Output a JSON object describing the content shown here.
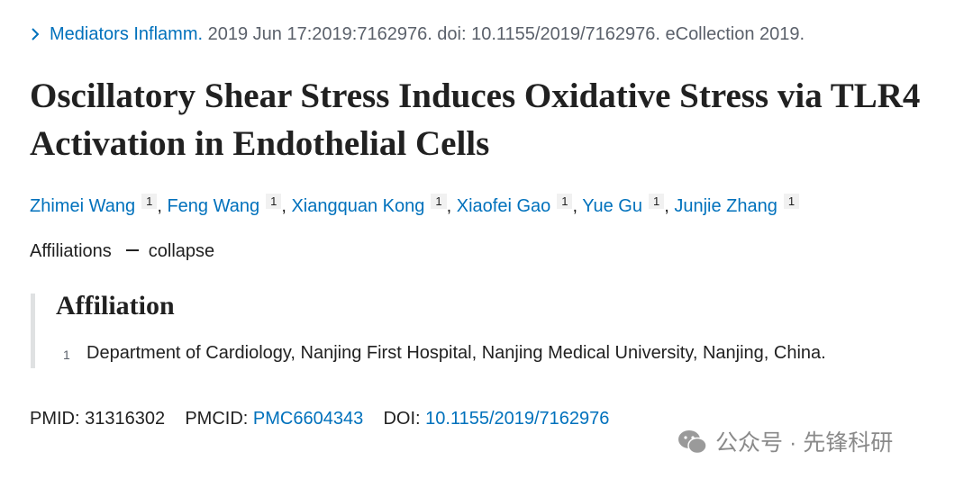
{
  "citation": {
    "journal": "Mediators Inflamm.",
    "details": "2019 Jun 17:2019:7162976. doi: 10.1155/2019/7162976. eCollection 2019."
  },
  "title": "Oscillatory Shear Stress Induces Oxidative Stress via TLR4 Activation in Endothelial Cells",
  "author_separator": ",",
  "authors": [
    {
      "name": "Zhimei Wang",
      "affiliation": "1"
    },
    {
      "name": "Feng Wang",
      "affiliation": "1"
    },
    {
      "name": "Xiangquan Kong",
      "affiliation": "1"
    },
    {
      "name": "Xiaofei Gao",
      "affiliation": "1"
    },
    {
      "name": "Yue Gu",
      "affiliation": "1"
    },
    {
      "name": "Junjie Zhang",
      "affiliation": "1"
    }
  ],
  "affiliations_toggle": {
    "label": "Affiliations",
    "action": "collapse"
  },
  "affiliation_section": {
    "heading": "Affiliation",
    "items": [
      {
        "number": "1",
        "text": "Department of Cardiology, Nanjing First Hospital, Nanjing Medical University, Nanjing, China."
      }
    ]
  },
  "identifiers": {
    "pmid_label": "PMID:",
    "pmid": "31316302",
    "pmcid_label": "PMCID:",
    "pmcid": "PMC6604343",
    "doi_label": "DOI:",
    "doi": "10.1155/2019/7162976"
  },
  "watermark": "公众号 · 先锋科研"
}
